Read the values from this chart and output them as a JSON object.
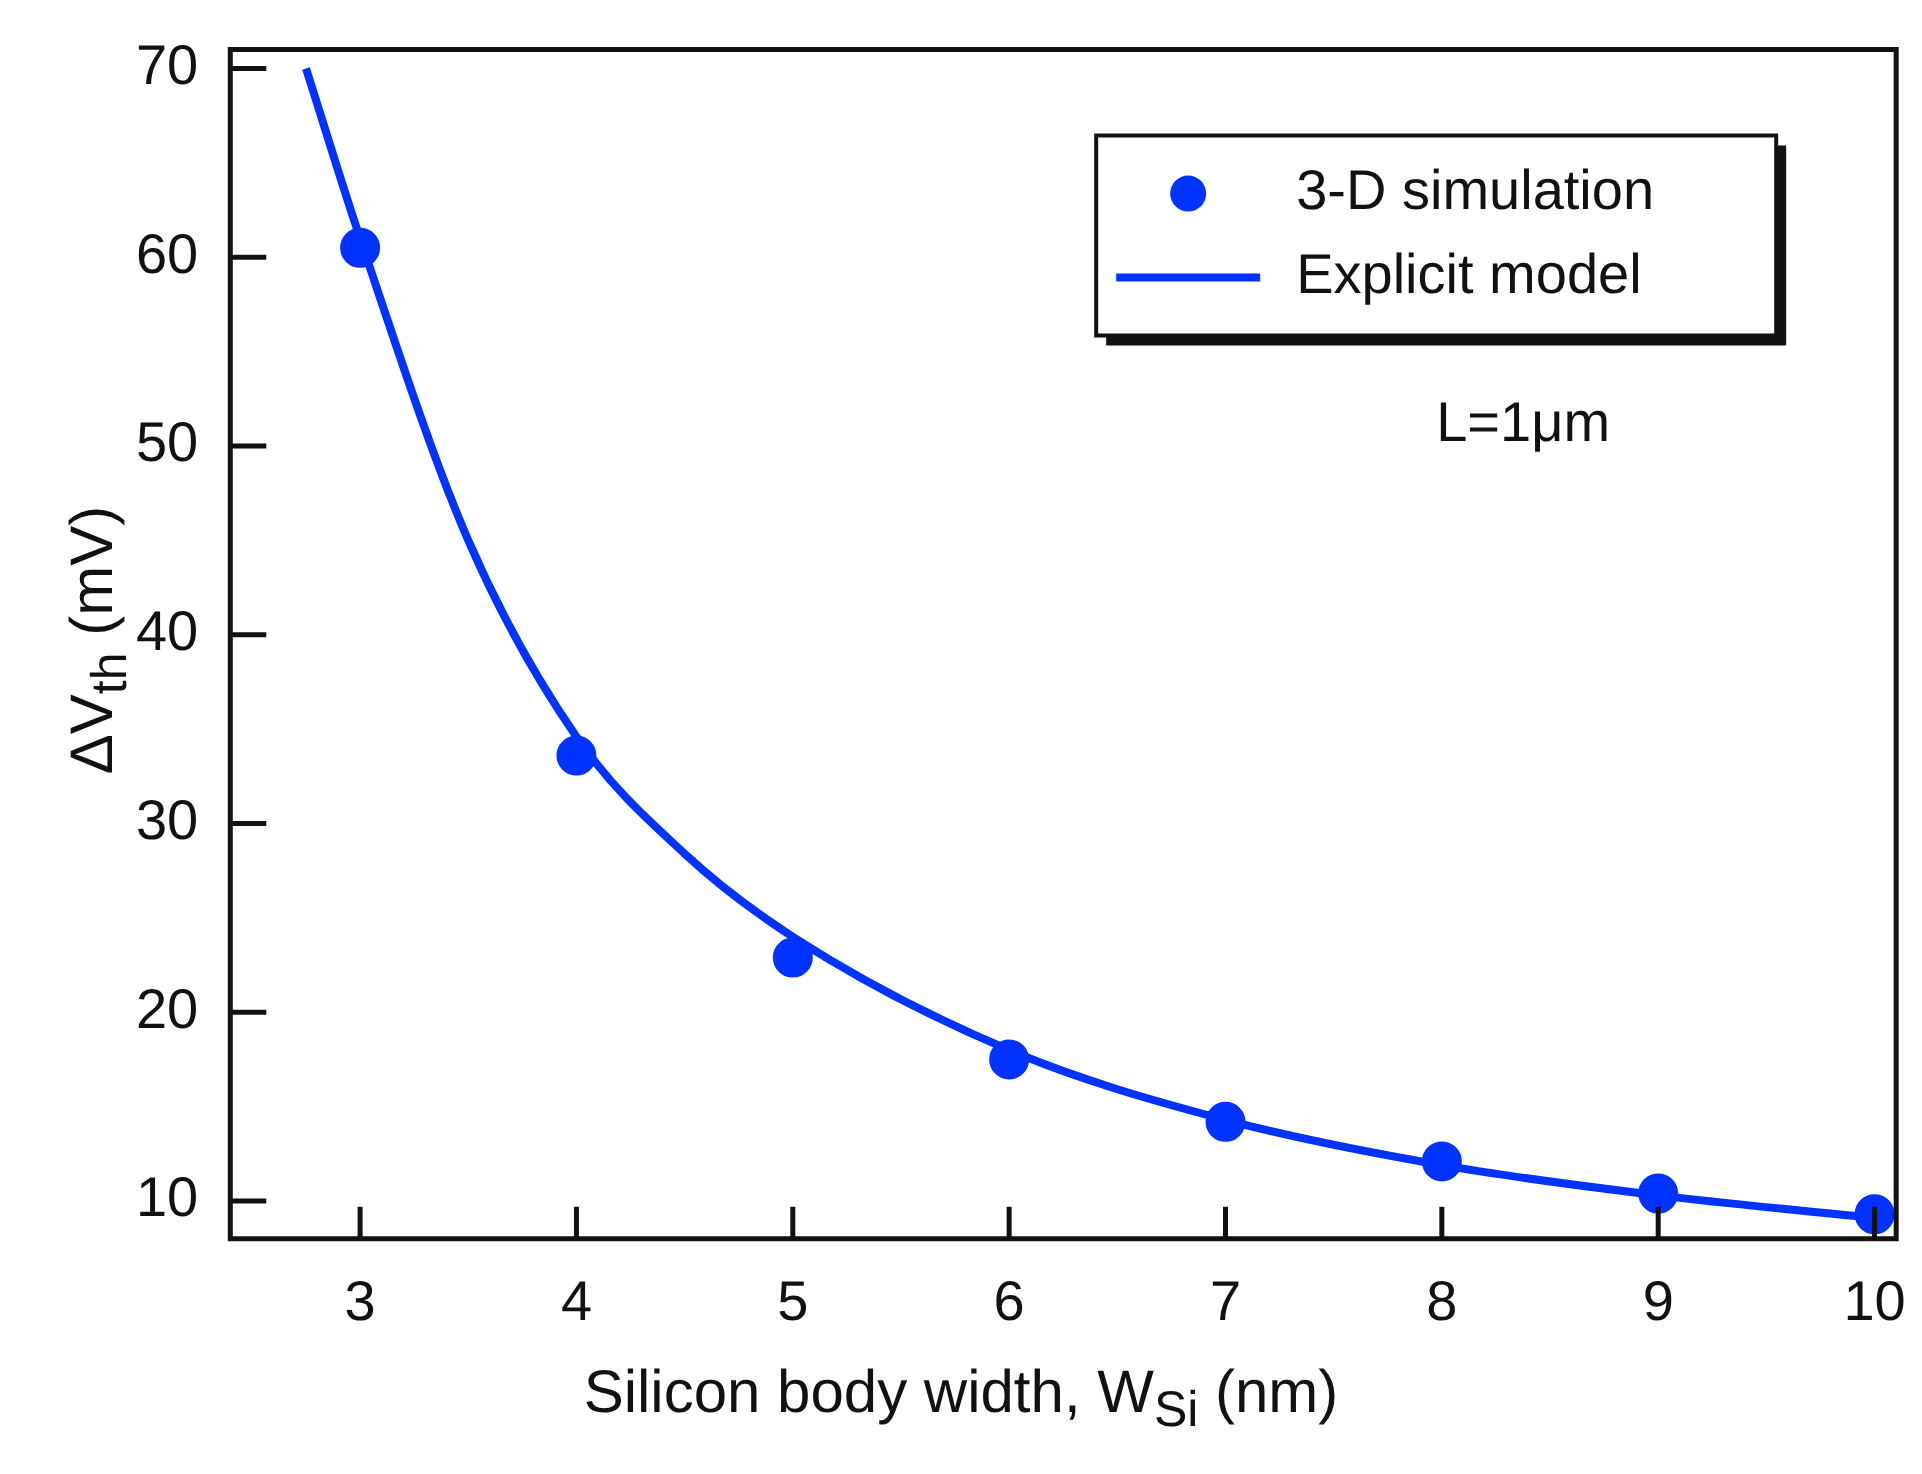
{
  "chart_data": {
    "type": "scatter",
    "xlabel": "Silicon body width, W$_{Si}$ (nm)",
    "ylabel": "ΔV$_{th}$ (mV)",
    "xlim": [
      2.4,
      10.1
    ],
    "xticks": [
      3,
      4,
      5,
      6,
      7,
      8,
      9,
      10
    ],
    "ylim": [
      8,
      71
    ],
    "yticks": [
      10,
      20,
      30,
      40,
      50,
      60,
      70
    ],
    "grid": false,
    "legend": "top right",
    "annotations": [
      "L=1μm"
    ],
    "series": [
      {
        "name": "3-D simulation",
        "type": "scatter",
        "marker": "circle",
        "color": "#0033ff",
        "x": [
          3,
          4,
          5,
          6,
          7,
          8,
          9,
          10
        ],
        "values": [
          60.5,
          33.6,
          22.9,
          17.5,
          14.2,
          12.1,
          10.4,
          9.3
        ]
      },
      {
        "name": "Explicit model",
        "type": "line",
        "marker": "none",
        "line_style": "solid",
        "color": "#0033ff",
        "x": [
          2.75,
          3,
          3.5,
          4,
          4.5,
          5,
          6,
          7,
          8,
          9,
          10
        ],
        "values": [
          70,
          61,
          45,
          34.6,
          28.4,
          24,
          18,
          14.3,
          11.9,
          10.3,
          9.1
        ]
      }
    ]
  }
}
